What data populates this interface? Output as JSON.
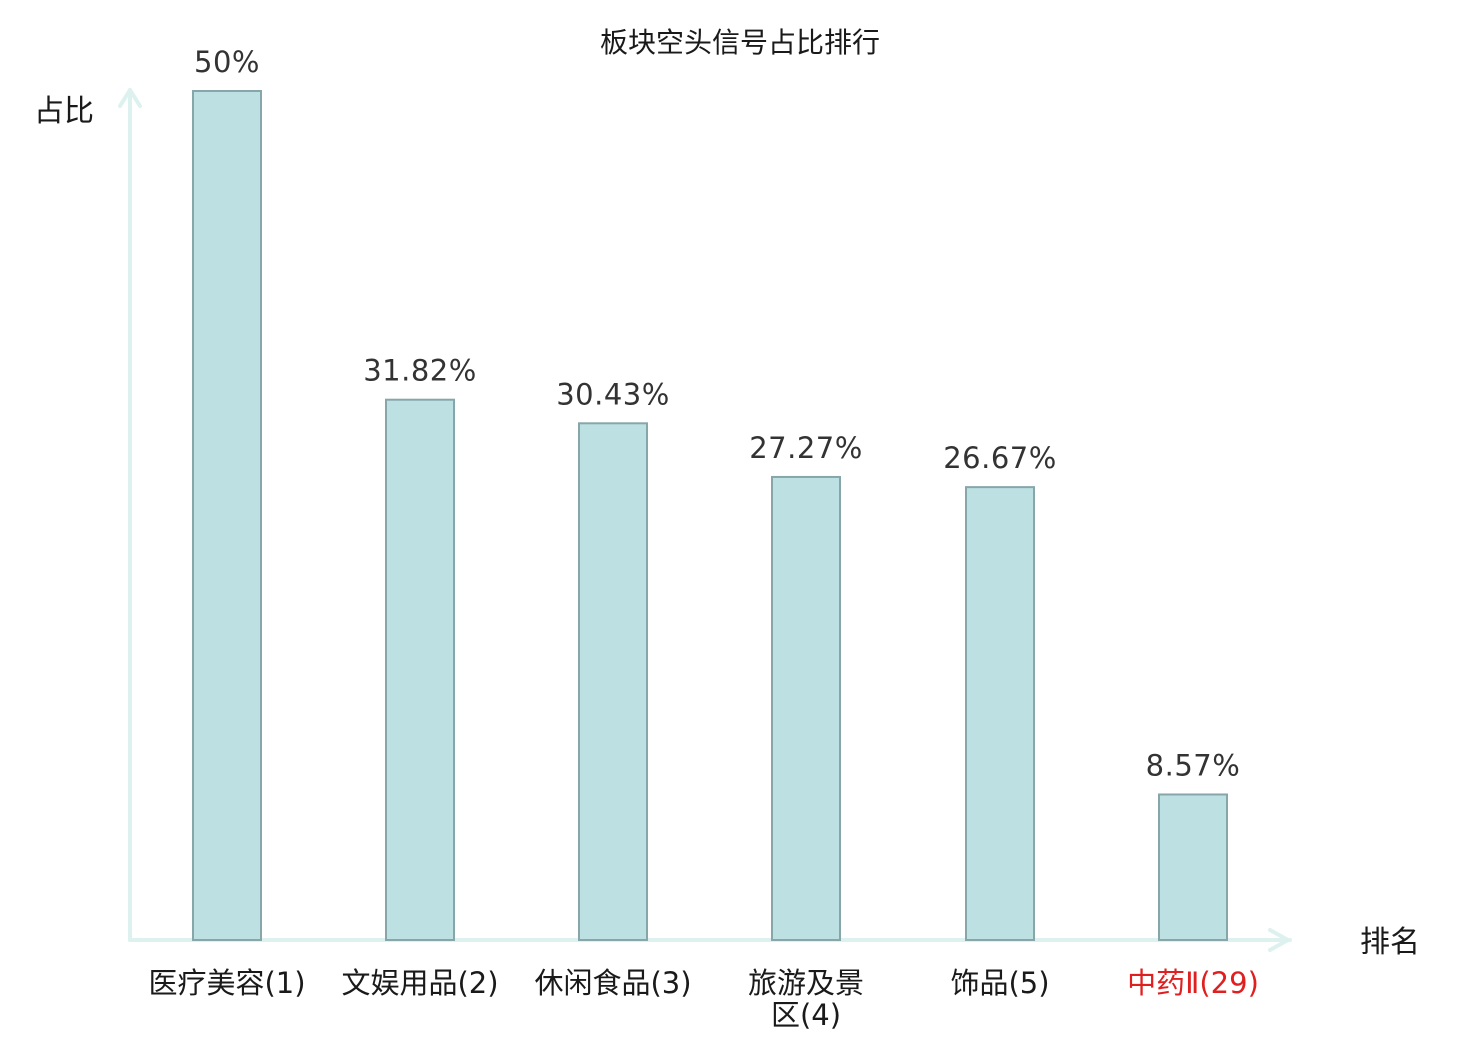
{
  "chart_data": {
    "type": "bar",
    "title": "板块空头信号占比排行",
    "ylabel": "占比",
    "xlabel": "排名",
    "ylim": [
      0,
      50
    ],
    "grid": false,
    "legend": "none",
    "categories": [
      [
        "医疗美容(1)"
      ],
      [
        "文娱用品(2)"
      ],
      [
        "休闲食品(3)"
      ],
      [
        "旅游及景",
        "区(4)"
      ],
      [
        "饰品(5)"
      ],
      [
        "中药Ⅱ(29)"
      ]
    ],
    "values": [
      50,
      31.82,
      30.43,
      27.27,
      26.67,
      8.57
    ],
    "value_labels": [
      "50%",
      "31.82%",
      "30.43%",
      "27.27%",
      "26.67%",
      "8.57%"
    ],
    "highlight_index": 5,
    "colors": {
      "bar_fill": "#bde0e3",
      "bar_stroke": "#86a6aa",
      "axis": "#ddf1ef",
      "highlight_text": "#e02020",
      "text": "#1a1a1a"
    }
  }
}
